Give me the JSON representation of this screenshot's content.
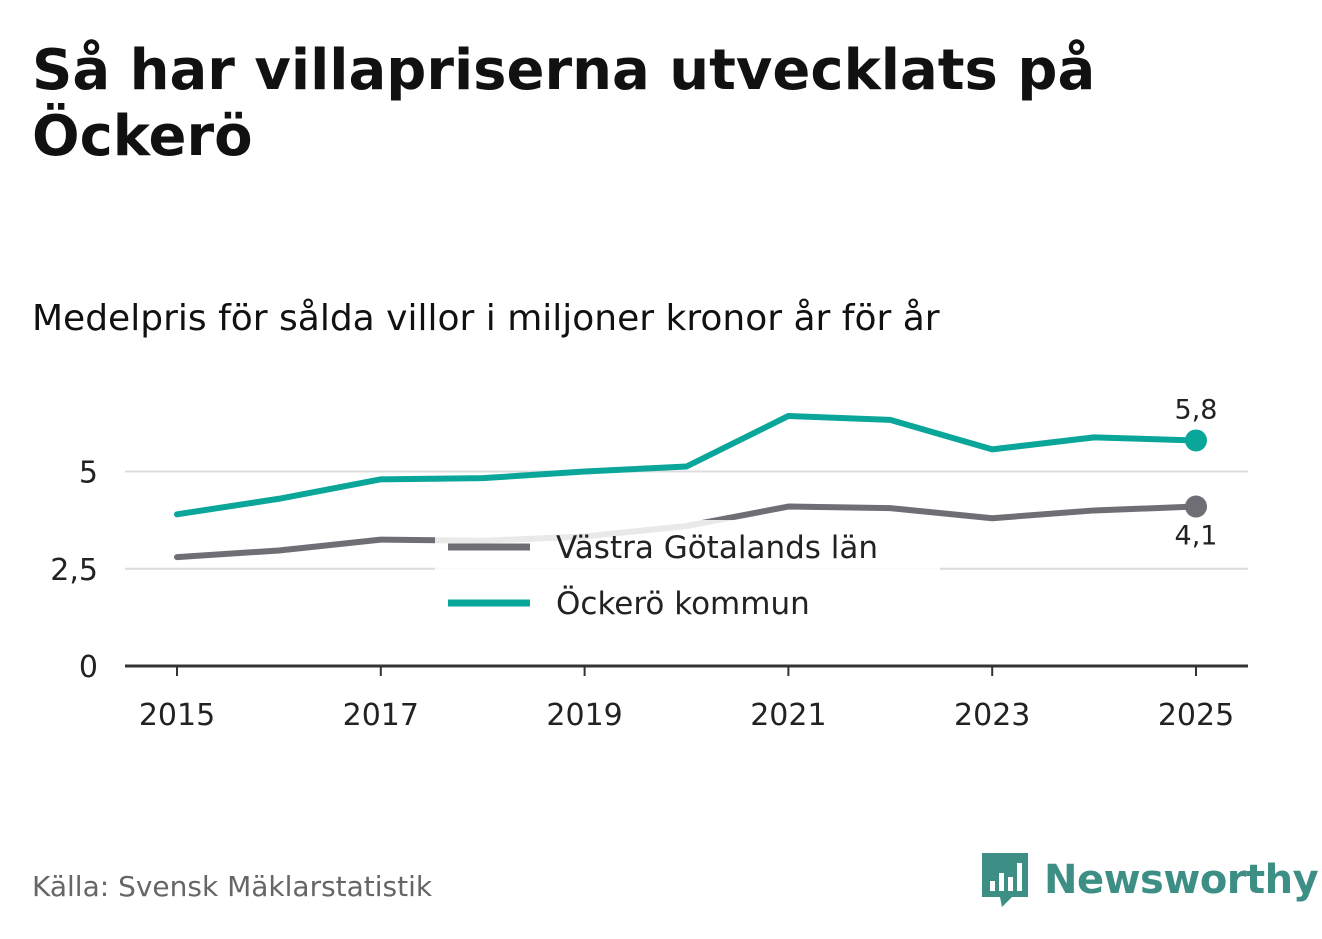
{
  "header": {
    "title": "Så har villapriserna utvecklats på Öckerö",
    "subtitle": "Medelpris för sålda villor i miljoner kronor år för år"
  },
  "footer": {
    "source": "Källa: Svensk Mäklarstatistik",
    "brand": "Newsworthy",
    "brand_icon": "bar-chart-speech-bubble-icon"
  },
  "chart_data": {
    "type": "line",
    "x": [
      2015,
      2016,
      2017,
      2018,
      2019,
      2020,
      2021,
      2022,
      2023,
      2024,
      2025
    ],
    "x_tick_values": [
      2015,
      2017,
      2019,
      2021,
      2023,
      2025
    ],
    "x_tick_labels": [
      "2015",
      "2017",
      "2019",
      "2021",
      "2023",
      "2025"
    ],
    "y_tick_values": [
      0,
      2.5,
      5
    ],
    "y_tick_labels": [
      "0",
      "2,5",
      "5"
    ],
    "ylim": [
      0,
      6.3
    ],
    "grid": "horizontal",
    "legend_position": "center",
    "series": [
      {
        "name": "Västra Götalands län",
        "color": "#6f6e75",
        "values": [
          2.8,
          2.97,
          3.25,
          3.22,
          3.33,
          3.6,
          4.1,
          4.06,
          3.8,
          4.0,
          4.1
        ],
        "end_label": "4,1"
      },
      {
        "name": "Öckerö kommun",
        "color": "#0aa69a",
        "values": [
          3.9,
          4.3,
          4.8,
          4.83,
          5.0,
          5.13,
          6.43,
          6.33,
          5.57,
          5.88,
          5.8
        ],
        "end_label": "5,8"
      }
    ]
  }
}
